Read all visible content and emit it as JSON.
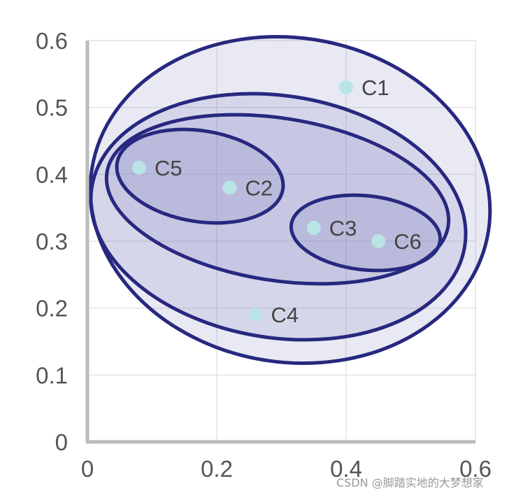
{
  "chart_data": {
    "type": "scatter",
    "title": "",
    "xlabel": "",
    "ylabel": "",
    "xlim": [
      0,
      0.6
    ],
    "ylim": [
      0,
      0.6
    ],
    "grid": true,
    "x_ticks": [
      "0",
      "0.2",
      "0.4",
      "0.6"
    ],
    "y_ticks": [
      "0",
      "0.1",
      "0.2",
      "0.3",
      "0.4",
      "0.5",
      "0.6"
    ],
    "points": [
      {
        "label": "C1",
        "x": 0.4,
        "y": 0.53
      },
      {
        "label": "C2",
        "x": 0.22,
        "y": 0.38
      },
      {
        "label": "C3",
        "x": 0.35,
        "y": 0.32
      },
      {
        "label": "C4",
        "x": 0.26,
        "y": 0.19
      },
      {
        "label": "C5",
        "x": 0.08,
        "y": 0.41
      },
      {
        "label": "C6",
        "x": 0.45,
        "y": 0.3
      }
    ],
    "clusters": [
      {
        "members": [
          "C5",
          "C2"
        ]
      },
      {
        "members": [
          "C3",
          "C6"
        ]
      },
      {
        "members": [
          "C5",
          "C2",
          "C3",
          "C6"
        ]
      },
      {
        "members": [
          "C5",
          "C2",
          "C3",
          "C6",
          "C4"
        ]
      },
      {
        "members": [
          "C1",
          "C2",
          "C3",
          "C4",
          "C5",
          "C6"
        ]
      }
    ],
    "colors": {
      "cluster_stroke": "#27287f",
      "cluster_fill": "#7b7bbd",
      "point": "#b9e4e6",
      "grid": "#dcdcdc",
      "axis": "#bbbbbb"
    }
  },
  "watermark": "CSDN @脚踏实地的大梦想家"
}
